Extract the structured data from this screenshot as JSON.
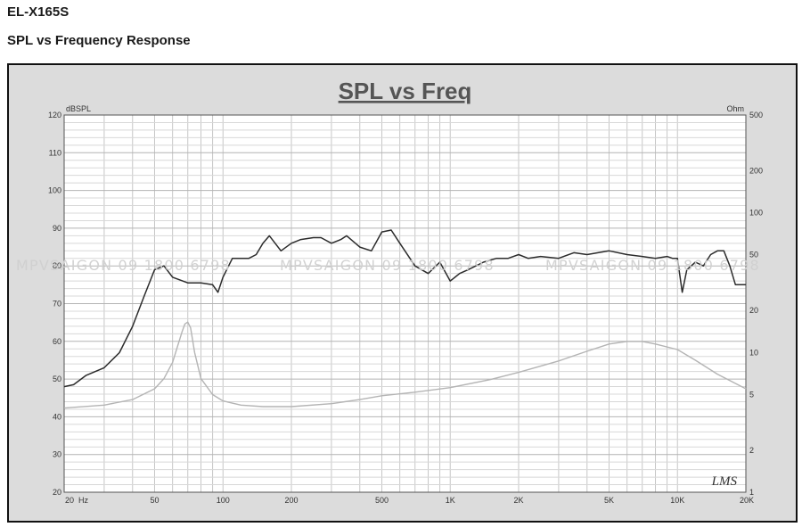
{
  "header": {
    "model": "EL-X165S",
    "subtitle": "SPL vs Frequency Response"
  },
  "watermark": "MPVSAIGON 09 1800 6798",
  "logo_text": "LMS",
  "colors": {
    "plot_bg": "#ffffff",
    "frame_bg": "#dcdcdc",
    "spl_line": "#2b2b2b",
    "impedance_line": "#b4b4b4",
    "grid": "#c6c6c6",
    "watermark": "#d0d0d0"
  },
  "chart_data": {
    "type": "line",
    "title": "SPL vs Freq",
    "xlabel": "",
    "y_left_unit": "dBSPL",
    "y_right_unit": "Ohm",
    "x_scale": "log",
    "xlim": [
      20,
      20000
    ],
    "ylim": [
      20,
      120
    ],
    "y2_scale": "log",
    "y2lim": [
      1,
      500
    ],
    "grid": true,
    "x_ticks": [
      {
        "value": 20,
        "label": "20"
      },
      {
        "value": 50,
        "label": "50"
      },
      {
        "value": 100,
        "label": "100"
      },
      {
        "value": 200,
        "label": "200"
      },
      {
        "value": 500,
        "label": "500"
      },
      {
        "value": 1000,
        "label": "1K"
      },
      {
        "value": 2000,
        "label": "2K"
      },
      {
        "value": 5000,
        "label": "5K"
      },
      {
        "value": 10000,
        "label": "10K"
      },
      {
        "value": 20000,
        "label": "20K"
      }
    ],
    "x_unit_label": "Hz",
    "y_ticks": [
      "20",
      "30",
      "40",
      "50",
      "60",
      "70",
      "80",
      "90",
      "100",
      "110",
      "120"
    ],
    "y2_ticks": [
      {
        "value": 1,
        "label": "1"
      },
      {
        "value": 2,
        "label": "2"
      },
      {
        "value": 5,
        "label": "5"
      },
      {
        "value": 10,
        "label": "10"
      },
      {
        "value": 20,
        "label": "20"
      },
      {
        "value": 50,
        "label": "50"
      },
      {
        "value": 100,
        "label": "100"
      },
      {
        "value": 200,
        "label": "200"
      },
      {
        "value": 500,
        "label": "500"
      }
    ],
    "series": [
      {
        "axis": "left",
        "x": [
          20,
          22,
          25,
          30,
          35,
          40,
          45,
          50,
          55,
          60,
          70,
          80,
          90,
          95,
          100,
          110,
          130,
          140,
          150,
          160,
          180,
          200,
          220,
          250,
          270,
          300,
          330,
          350,
          400,
          450,
          500,
          550,
          600,
          700,
          800,
          900,
          1000,
          1050,
          1100,
          1200,
          1400,
          1600,
          1800,
          2000,
          2200,
          2500,
          3000,
          3500,
          4000,
          5000,
          6000,
          7000,
          8000,
          9000,
          9500,
          10000,
          10500,
          11000,
          12000,
          13000,
          14000,
          15000,
          16000,
          17000,
          18000,
          20000
        ],
        "y": [
          48,
          48.5,
          51,
          53,
          57,
          64,
          72,
          79,
          80,
          77,
          75.5,
          75.5,
          75,
          73,
          77,
          82,
          82,
          83,
          86,
          88,
          84,
          86,
          87,
          87.5,
          87.5,
          86,
          87,
          88,
          85,
          84,
          89,
          89.5,
          86,
          80,
          78,
          81,
          76,
          77,
          78,
          79,
          81,
          82,
          82,
          83,
          82,
          82.5,
          82,
          83.5,
          83,
          84,
          83,
          82.5,
          82,
          82.5,
          82,
          82,
          73,
          79,
          81,
          80,
          83,
          84,
          84,
          80,
          75,
          75
        ]
      },
      {
        "axis": "right",
        "x": [
          20,
          30,
          40,
          50,
          55,
          60,
          63,
          66,
          68,
          70,
          72,
          75,
          80,
          90,
          100,
          120,
          150,
          200,
          300,
          400,
          500,
          700,
          1000,
          1500,
          2000,
          3000,
          4000,
          5000,
          6000,
          7000,
          8000,
          10000,
          12000,
          15000,
          20000
        ],
        "y": [
          4,
          4.2,
          4.6,
          5.5,
          6.5,
          8.5,
          11,
          14,
          16,
          16.5,
          15,
          10,
          6.5,
          5,
          4.5,
          4.2,
          4.1,
          4.1,
          4.3,
          4.6,
          4.9,
          5.2,
          5.6,
          6.4,
          7.2,
          8.7,
          10.2,
          11.5,
          12,
          12,
          11.5,
          10.5,
          8.8,
          7,
          5.5
        ]
      }
    ]
  }
}
